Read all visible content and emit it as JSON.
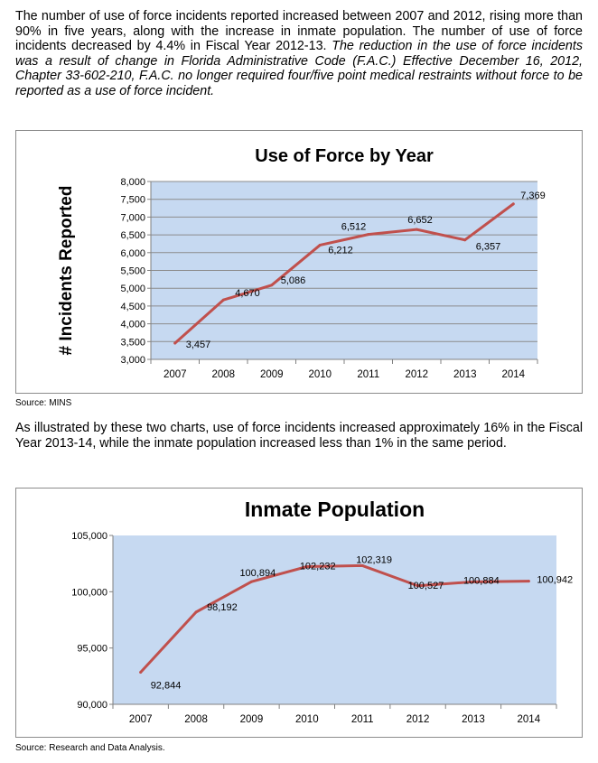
{
  "intro": {
    "normal": "The number of use of force incidents reported increased between 2007 and 2012, rising more than 90% in five years, along with the increase in inmate population. The number of use of force incidents decreased by 4.4% in Fiscal Year 2012-13.",
    "italic": "The reduction in the use of force incidents was a result of change in Florida Administrative Code (F.A.C.) Effective December 16, 2012, Chapter 33-602-210, F.A.C. no longer required four/five point medical restraints without force to be reported as a use of force incident."
  },
  "source1": "Source: MINS",
  "middle_text": "As illustrated by these two charts, use of force incidents increased approximately 16% in the Fiscal Year 2013-14, while the inmate population increased less than 1% in the same period.",
  "source2": "Source:  Research and Data Analysis.",
  "colors": {
    "plot_bg": "#c6d9f1",
    "line": "#c0504d",
    "grid": "#8c8c8c"
  },
  "chart_data": [
    {
      "type": "line",
      "title": "Use of Force by Year",
      "ylabel": "# Incidents Reported",
      "xlabel": "",
      "x": [
        "2007",
        "2008",
        "2009",
        "2010",
        "2011",
        "2012",
        "2013",
        "2014"
      ],
      "values": [
        3457,
        4670,
        5086,
        6212,
        6512,
        6652,
        6357,
        7369
      ],
      "data_labels": [
        "3,457",
        "4,670",
        "5,086",
        "6,212",
        "6,512",
        "6,652",
        "6,357",
        "7,369"
      ],
      "ylim": [
        3000,
        8000
      ],
      "yticks": [
        "3,000",
        "3,500",
        "4,000",
        "4,500",
        "5,000",
        "5,500",
        "6,000",
        "6,500",
        "7,000",
        "7,500",
        "8,000"
      ],
      "grid": true,
      "legend": "none"
    },
    {
      "type": "line",
      "title": "Inmate Population",
      "ylabel": "",
      "xlabel": "",
      "x": [
        "2007",
        "2008",
        "2009",
        "2010",
        "2011",
        "2012",
        "2013",
        "2014"
      ],
      "values": [
        92844,
        98192,
        100894,
        102232,
        102319,
        100527,
        100884,
        100942
      ],
      "data_labels": [
        "92,844",
        "98,192",
        "100,894",
        "102,232",
        "102,319",
        "100,527",
        "100,884",
        "100,942"
      ],
      "ylim": [
        90000,
        105000
      ],
      "yticks": [
        "90,000",
        "95,000",
        "100,000",
        "105,000"
      ],
      "grid": false,
      "legend": "none"
    }
  ]
}
